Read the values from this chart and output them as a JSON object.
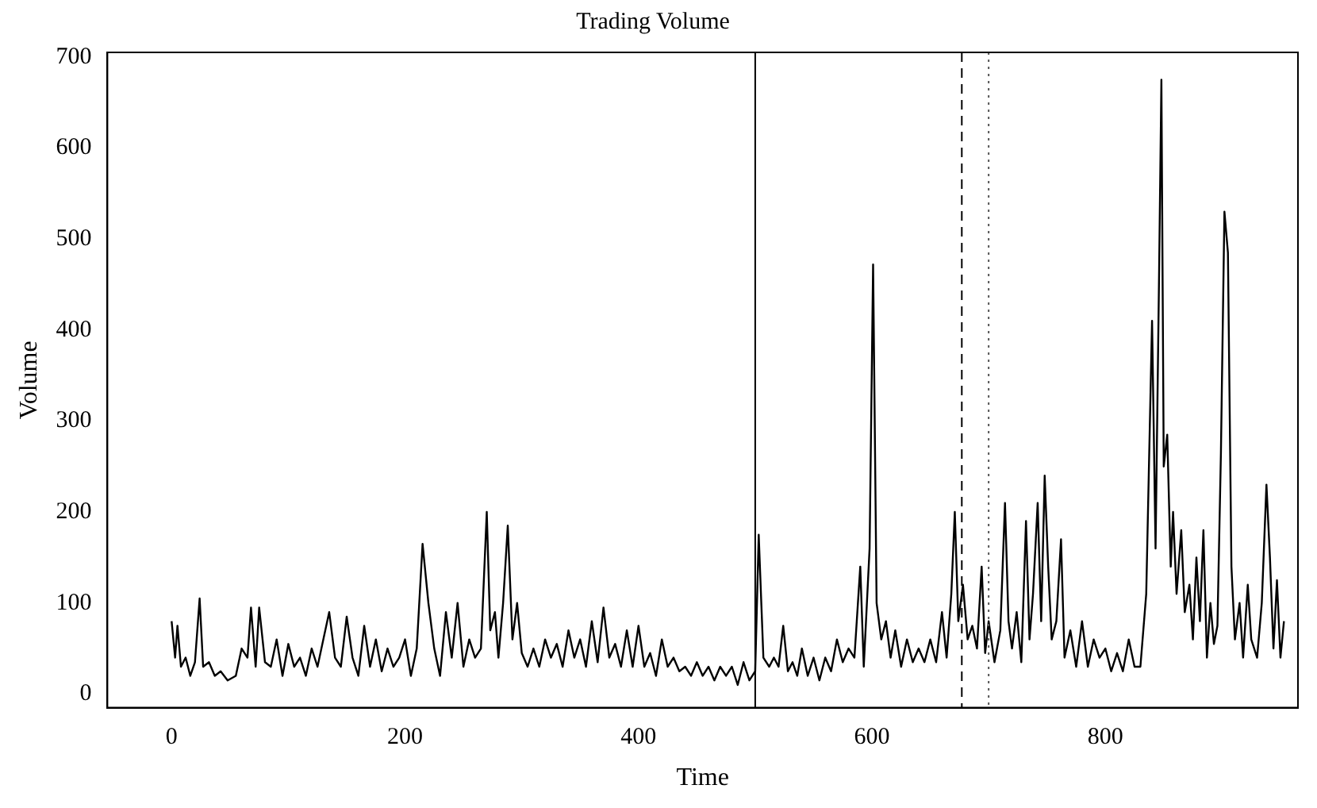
{
  "chart_data": {
    "type": "line",
    "title": "Trading Volume",
    "xlabel": "Time",
    "ylabel": "Volume",
    "xlim": [
      -55,
      965
    ],
    "ylim": [
      -15,
      705
    ],
    "xticks": [
      0,
      200,
      400,
      600,
      800
    ],
    "yticks": [
      0,
      100,
      200,
      300,
      400,
      500,
      600,
      700
    ],
    "grid": false,
    "legend": false,
    "marker": "none",
    "line_style": "solid",
    "series": [
      {
        "color": "#000000",
        "x": [
          0,
          3,
          5,
          8,
          12,
          16,
          20,
          24,
          27,
          32,
          37,
          42,
          48,
          55,
          60,
          65,
          68,
          72,
          75,
          80,
          85,
          90,
          95,
          100,
          105,
          110,
          115,
          120,
          125,
          130,
          135,
          140,
          145,
          150,
          155,
          160,
          165,
          170,
          175,
          180,
          185,
          190,
          195,
          200,
          205,
          210,
          215,
          220,
          225,
          230,
          235,
          240,
          245,
          250,
          255,
          260,
          265,
          270,
          273,
          277,
          280,
          284,
          288,
          292,
          296,
          300,
          305,
          310,
          315,
          320,
          325,
          330,
          335,
          340,
          345,
          350,
          355,
          360,
          365,
          370,
          375,
          380,
          385,
          390,
          395,
          400,
          405,
          410,
          415,
          420,
          425,
          430,
          435,
          440,
          445,
          450,
          455,
          460,
          465,
          470,
          475,
          480,
          485,
          490,
          495,
          500,
          503,
          507,
          512,
          516,
          520,
          524,
          528,
          532,
          536,
          540,
          545,
          550,
          555,
          560,
          565,
          570,
          575,
          580,
          585,
          590,
          593,
          598,
          601,
          604,
          608,
          612,
          616,
          620,
          625,
          630,
          635,
          640,
          645,
          650,
          655,
          660,
          664,
          668,
          671,
          674,
          678,
          682,
          686,
          690,
          694,
          697,
          700,
          705,
          710,
          714,
          717,
          720,
          724,
          728,
          732,
          735,
          738,
          742,
          745,
          748,
          751,
          754,
          758,
          762,
          765,
          770,
          775,
          780,
          785,
          790,
          795,
          800,
          805,
          810,
          815,
          820,
          825,
          830,
          835,
          840,
          843,
          846,
          848,
          850,
          853,
          856,
          858,
          861,
          865,
          868,
          872,
          875,
          878,
          881,
          884,
          887,
          890,
          893,
          896,
          899,
          902,
          905,
          908,
          911,
          915,
          918,
          922,
          925,
          930,
          934,
          938,
          941,
          944,
          947,
          950,
          953
        ],
        "values": [
          80,
          40,
          75,
          30,
          40,
          20,
          35,
          105,
          30,
          35,
          20,
          25,
          15,
          20,
          50,
          40,
          95,
          30,
          95,
          35,
          30,
          60,
          20,
          55,
          30,
          40,
          20,
          50,
          30,
          60,
          90,
          40,
          30,
          85,
          40,
          20,
          75,
          30,
          60,
          25,
          50,
          30,
          40,
          60,
          20,
          50,
          165,
          100,
          50,
          20,
          90,
          40,
          100,
          30,
          60,
          40,
          50,
          200,
          70,
          90,
          40,
          100,
          185,
          60,
          100,
          45,
          30,
          50,
          30,
          60,
          40,
          55,
          30,
          70,
          40,
          60,
          30,
          80,
          35,
          95,
          40,
          55,
          30,
          70,
          30,
          75,
          30,
          45,
          20,
          60,
          30,
          40,
          25,
          30,
          20,
          35,
          20,
          30,
          15,
          30,
          20,
          30,
          10,
          35,
          15,
          25,
          175,
          40,
          30,
          40,
          30,
          75,
          25,
          35,
          20,
          50,
          20,
          40,
          15,
          40,
          25,
          60,
          35,
          50,
          40,
          140,
          30,
          160,
          472,
          100,
          60,
          80,
          40,
          70,
          30,
          60,
          35,
          50,
          35,
          60,
          35,
          90,
          40,
          110,
          200,
          80,
          120,
          60,
          75,
          50,
          140,
          45,
          80,
          35,
          70,
          210,
          80,
          50,
          90,
          35,
          190,
          60,
          110,
          210,
          80,
          240,
          140,
          60,
          80,
          170,
          40,
          70,
          30,
          80,
          30,
          60,
          40,
          50,
          25,
          45,
          25,
          60,
          30,
          30,
          110,
          410,
          160,
          460,
          675,
          250,
          285,
          140,
          200,
          110,
          180,
          90,
          120,
          60,
          150,
          80,
          180,
          40,
          100,
          55,
          75,
          265,
          530,
          485,
          140,
          60,
          100,
          40,
          120,
          60,
          40,
          100,
          230,
          150,
          50,
          125,
          40,
          80
        ]
      }
    ],
    "ref_lines": [
      {
        "axis": "x",
        "value": 500,
        "line_style": "solid",
        "color": "#000000"
      },
      {
        "axis": "x",
        "value": 677,
        "line_style": "dashed",
        "color": "#000000"
      },
      {
        "axis": "x",
        "value": 700,
        "line_style": "dotted",
        "color": "#555555"
      }
    ]
  }
}
